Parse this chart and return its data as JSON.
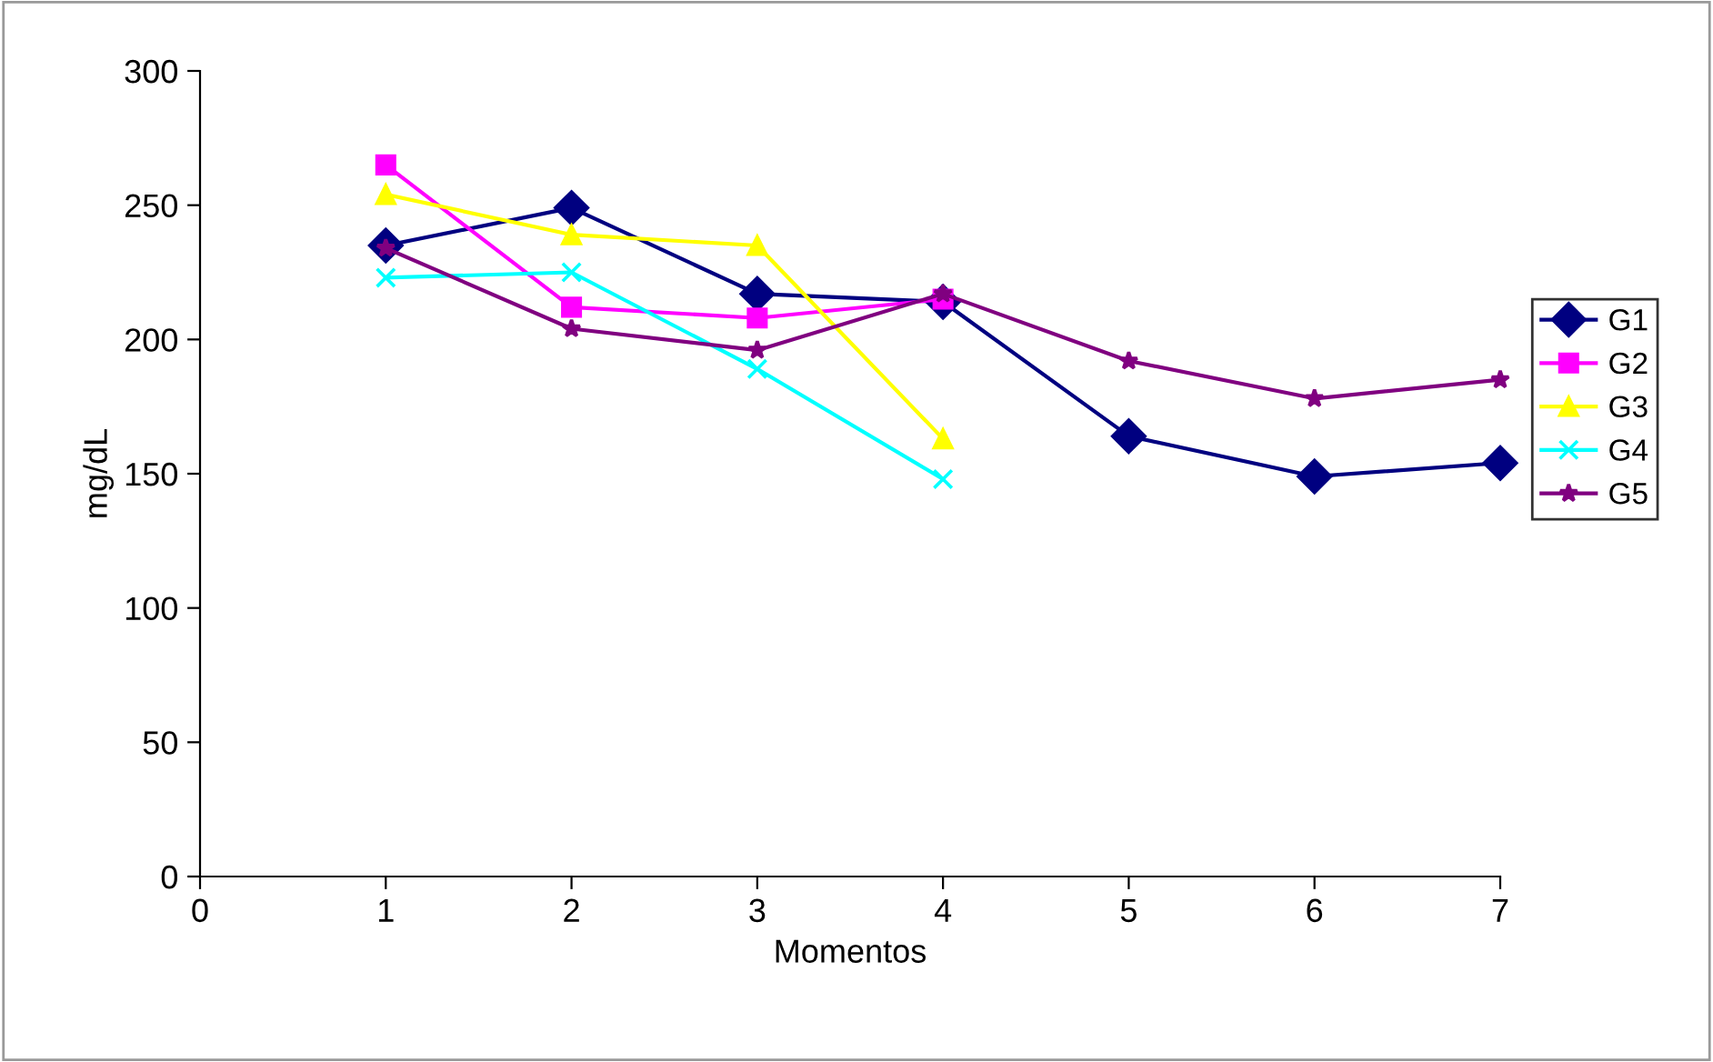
{
  "chart_data": {
    "type": "line",
    "xlabel": "Momentos",
    "ylabel": "mg/dL",
    "xlim": [
      0,
      7
    ],
    "xticks": [
      0,
      1,
      2,
      3,
      4,
      5,
      6,
      7
    ],
    "ylim": [
      0,
      300
    ],
    "yticks": [
      0,
      50,
      100,
      150,
      200,
      250,
      300
    ],
    "grid": false,
    "legend": "right",
    "line_style": "solid",
    "series": [
      {
        "name": "G1",
        "color": "#000080",
        "marker": "diamond",
        "x": [
          1,
          2,
          3,
          4,
          5,
          6,
          7
        ],
        "values": [
          235,
          249,
          217,
          214,
          164,
          149,
          154
        ]
      },
      {
        "name": "G2",
        "color": "#ff00ff",
        "marker": "square",
        "x": [
          1,
          2,
          3,
          4
        ],
        "values": [
          265,
          212,
          208,
          215
        ]
      },
      {
        "name": "G3",
        "color": "#ffff00",
        "marker": "triangle",
        "x": [
          1,
          2,
          3,
          4
        ],
        "values": [
          254,
          239,
          235,
          163
        ]
      },
      {
        "name": "G4",
        "color": "#00ffff",
        "marker": "cross",
        "x": [
          1,
          2,
          3,
          4
        ],
        "values": [
          223,
          225,
          189,
          148
        ]
      },
      {
        "name": "G5",
        "color": "#800080",
        "marker": "star",
        "x": [
          1,
          2,
          3,
          4,
          5,
          6,
          7
        ],
        "values": [
          234,
          204,
          196,
          217,
          192,
          178,
          185
        ]
      }
    ]
  }
}
